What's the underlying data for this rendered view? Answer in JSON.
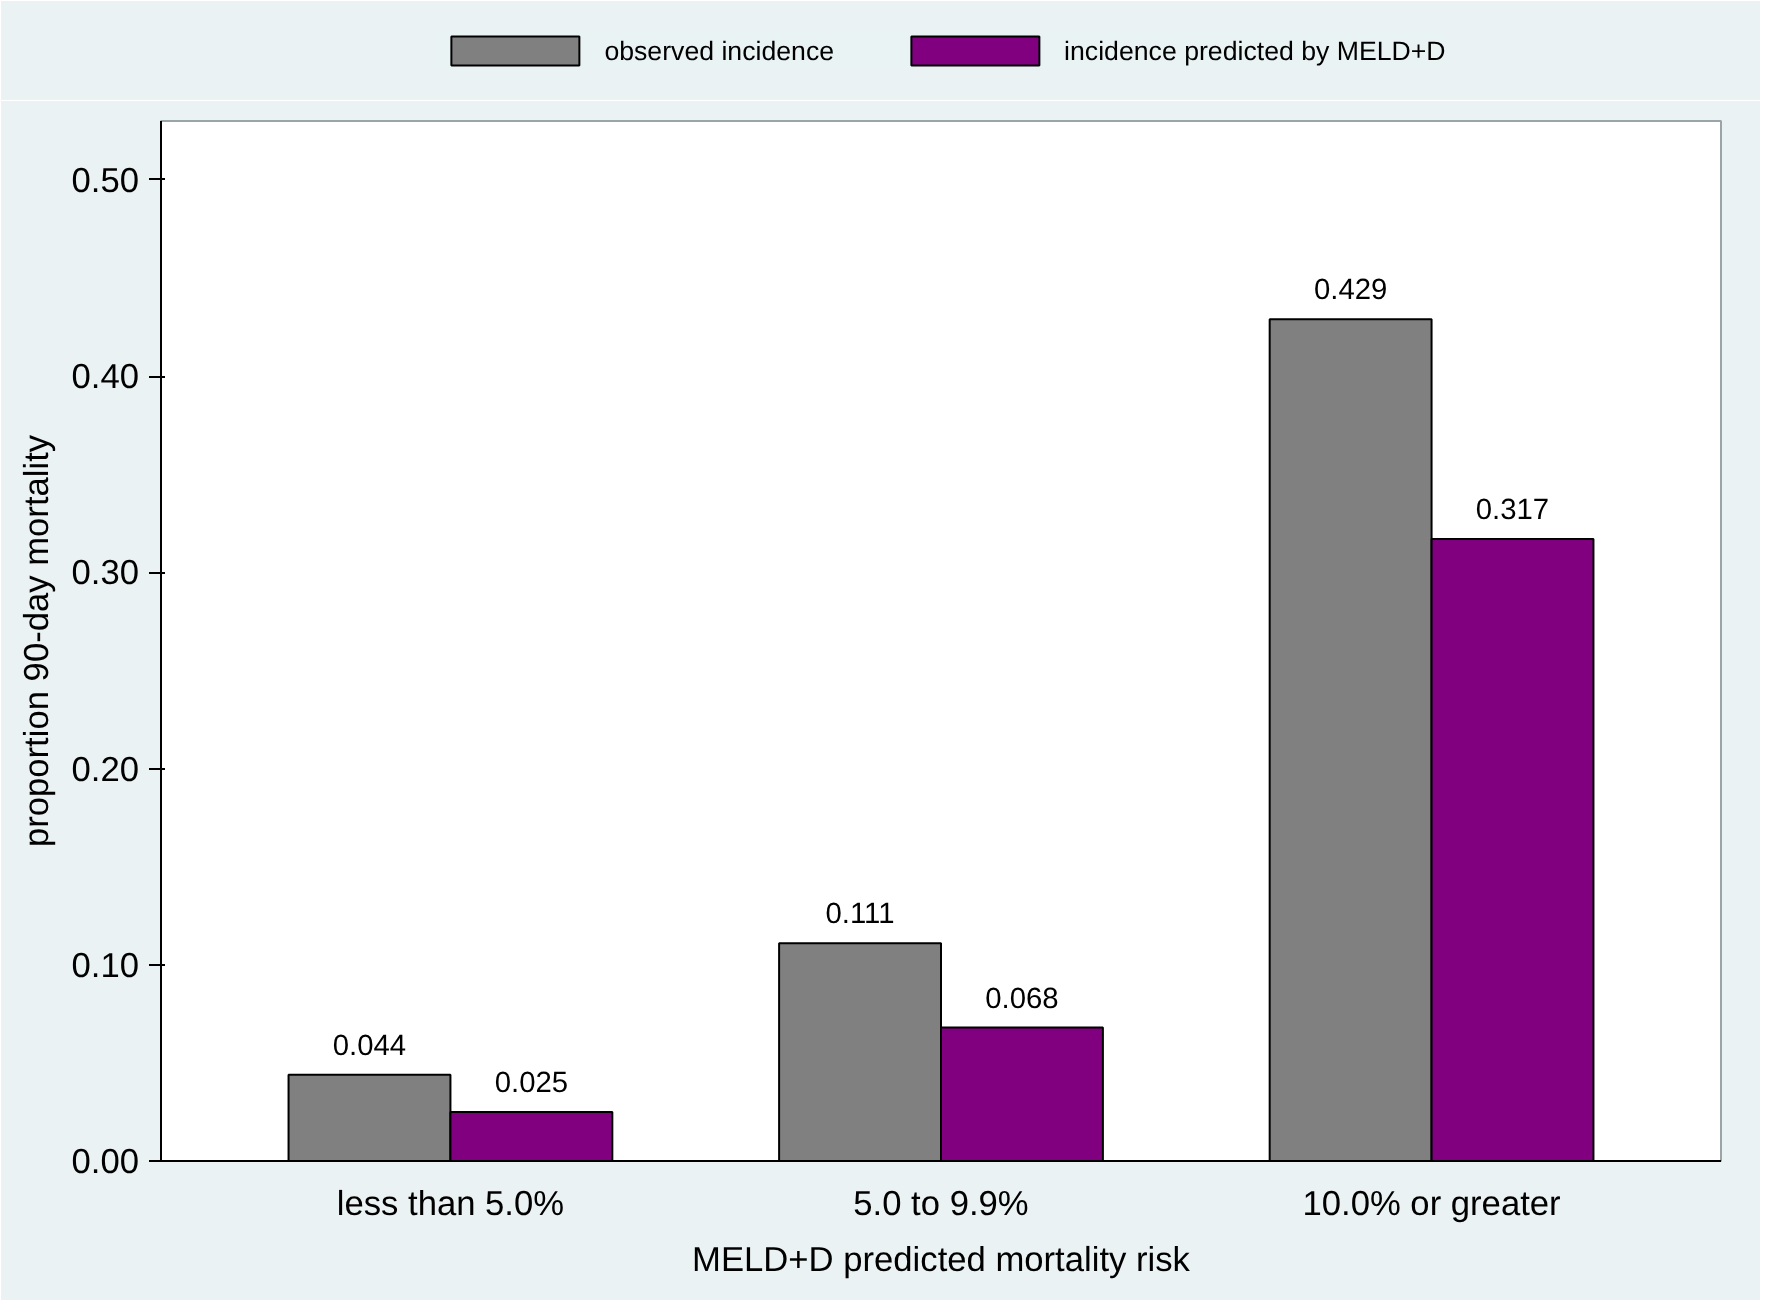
{
  "chart_data": {
    "type": "bar",
    "xlabel": "MELD+D predicted mortality risk",
    "ylabel": "proportion 90-day mortality",
    "categories": [
      "less than 5.0%",
      "5.0 to 9.9%",
      "10.0% or greater"
    ],
    "series": [
      {
        "name": "observed incidence",
        "color": "#808080",
        "values": [
          0.044,
          0.111,
          0.429
        ]
      },
      {
        "name": "incidence predicted by MELD+D",
        "color": "#800080",
        "values": [
          0.025,
          0.068,
          0.317
        ]
      }
    ],
    "ylim": [
      0,
      0.53
    ],
    "yticks": [
      {
        "value": 0,
        "label": "0.00"
      },
      {
        "value": 0.1,
        "label": "0.10"
      },
      {
        "value": 0.2,
        "label": "0.20"
      },
      {
        "value": 0.3,
        "label": "0.30"
      },
      {
        "value": 0.4,
        "label": "0.40"
      },
      {
        "value": 0.5,
        "label": "0.50"
      }
    ],
    "data_labels": true,
    "grid": false,
    "legend": "top"
  }
}
